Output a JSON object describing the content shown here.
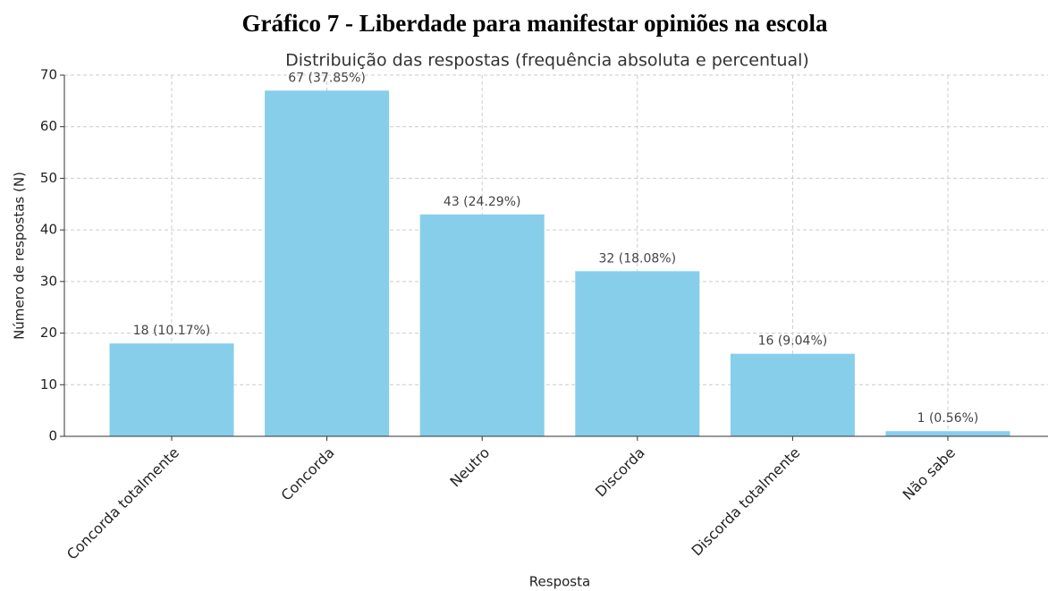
{
  "chart_data": {
    "type": "bar",
    "title": "Gráfico 7 - Liberdade para manifestar opiniões na escola",
    "subtitle": "Distribuição das respostas (frequência absoluta e percentual)",
    "x_label": "Resposta",
    "y_label": "Número de respostas (N)",
    "categories": [
      "Concorda totalmente",
      "Concorda",
      "Neutro",
      "Discorda",
      "Discorda totalmente",
      "Não sabe"
    ],
    "values": [
      18,
      67,
      43,
      32,
      16,
      1
    ],
    "value_labels": [
      "18 (10.17%)",
      "67 (37.85%)",
      "43 (24.29%)",
      "32 (18.08%)",
      "16 (9.04%)",
      "1 (0.56%)"
    ],
    "color": "#87ceeb",
    "ylim": [
      0,
      70
    ],
    "yticks": [
      0,
      10,
      20,
      30,
      40,
      50,
      60,
      70
    ],
    "grid": true
  }
}
